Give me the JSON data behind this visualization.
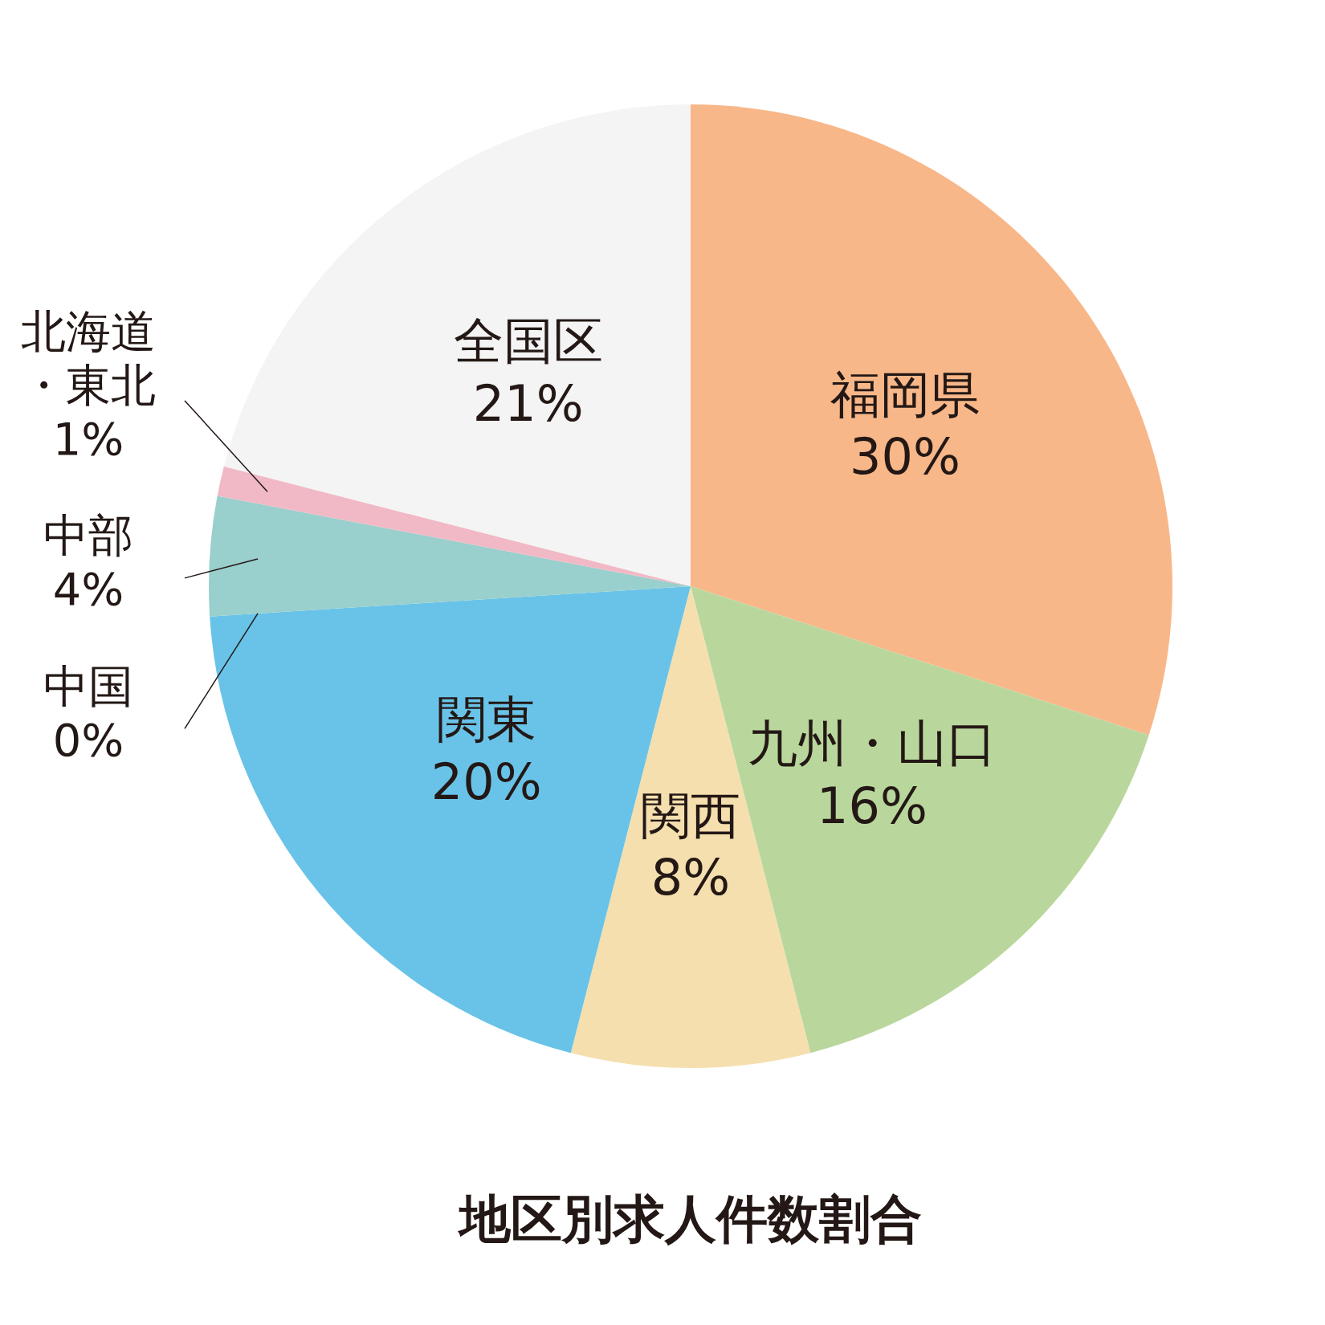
{
  "chart_data": {
    "type": "pie",
    "title": "地区別求人件数割合",
    "categories": [
      "福岡県",
      "九州・山口",
      "関西",
      "関東",
      "中国",
      "中部",
      "北海道・東北",
      "全国区"
    ],
    "values": [
      30,
      16,
      8,
      20,
      0,
      4,
      1,
      21
    ],
    "value_labels": [
      "30%",
      "16%",
      "8%",
      "20%",
      "0%",
      "4%",
      "1%",
      "21%"
    ],
    "colors": [
      "#f8b789",
      "#b9d79c",
      "#f5dfae",
      "#69c3e8",
      "#7fc9d8",
      "#99cfcc",
      "#f1b9c5",
      "#f4f4f4"
    ]
  }
}
